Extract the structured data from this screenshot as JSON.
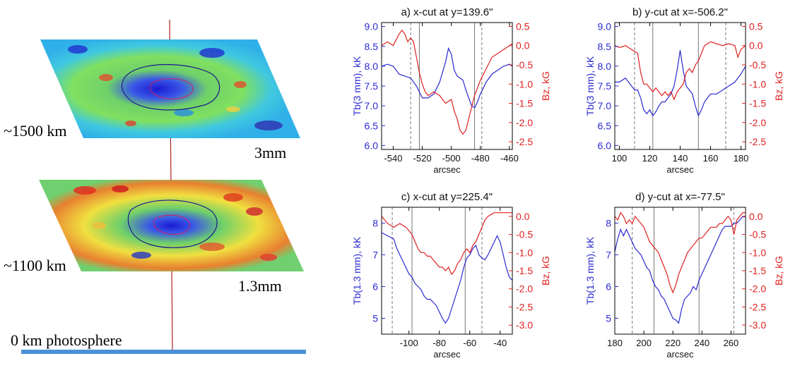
{
  "left": {
    "layer_top": {
      "height_label": "~1500 km",
      "wavelength": "3mm"
    },
    "layer_mid": {
      "height_label": "~1100 km",
      "wavelength": "1.3mm"
    },
    "base_label": "0 km photosphere",
    "colors": {
      "axis_line": "#b02020",
      "base_bar": "#4a90d9",
      "contour": "#1a1a8c",
      "contour_inner": "#d02060"
    }
  },
  "chart_data": [
    {
      "type": "line",
      "title": "a) x-cut at y=139.6\"",
      "xlabel": "arcsec",
      "ylabel_left": "Tb(3 mm), kK",
      "ylabel_right": "Bz, kG",
      "xlim": [
        -548,
        -458
      ],
      "ylim_left": [
        5.9,
        9.1
      ],
      "ylim_right": [
        -2.7,
        0.6
      ],
      "xticks": [
        -540,
        -520,
        -500,
        -480,
        -460
      ],
      "xtick_labels": [
        "-540",
        "-520",
        "-500",
        "-480",
        "-460"
      ],
      "yticks_left": [
        6.0,
        6.5,
        7.0,
        7.5,
        8.0,
        8.5,
        9.0
      ],
      "yticks_left_labels": [
        "6.0",
        "6.5",
        "7.0",
        "7.5",
        "8.0",
        "8.5",
        "9.0"
      ],
      "yticks_right": [
        0.5,
        0.0,
        -0.5,
        -1.0,
        -1.5,
        -2.0,
        -2.5
      ],
      "yticks_right_labels": [
        "0.5",
        "0.0",
        "-0.5",
        "-1.0",
        "-1.5",
        "-2.0",
        "-2.5"
      ],
      "vlines_solid": [
        -522,
        -484
      ],
      "vlines_dashed": [
        -528,
        -479
      ],
      "series": [
        {
          "axis": "left",
          "color": "#2a2ad0",
          "x": [
            -548,
            -544,
            -540,
            -536,
            -532,
            -528,
            -524,
            -520,
            -516,
            -512,
            -508,
            -504,
            -502,
            -500,
            -498,
            -496,
            -494,
            -492,
            -490,
            -488,
            -486,
            -484,
            -482,
            -480,
            -476,
            -472,
            -468,
            -464,
            -460,
            -458
          ],
          "y": [
            8.0,
            8.05,
            8.0,
            7.8,
            7.75,
            7.7,
            7.5,
            7.2,
            7.2,
            7.3,
            7.6,
            8.1,
            8.45,
            8.3,
            7.9,
            7.75,
            7.7,
            7.65,
            7.4,
            7.2,
            7.0,
            6.95,
            7.1,
            7.3,
            7.6,
            7.8,
            7.9,
            8.0,
            8.05,
            8.0
          ]
        },
        {
          "axis": "right",
          "color": "#e02020",
          "x": [
            -548,
            -544,
            -540,
            -536,
            -534,
            -532,
            -530,
            -528,
            -526,
            -524,
            -522,
            -520,
            -518,
            -516,
            -512,
            -508,
            -504,
            -500,
            -498,
            -496,
            -494,
            -492,
            -490,
            -488,
            -486,
            -484,
            -482,
            -480,
            -476,
            -472,
            -468,
            -464,
            -460,
            -458
          ],
          "y": [
            0.0,
            0.1,
            0.0,
            0.3,
            0.4,
            0.3,
            0.1,
            0.2,
            0.1,
            -0.3,
            -0.7,
            -1.0,
            -1.2,
            -1.3,
            -1.2,
            -1.3,
            -1.5,
            -1.4,
            -1.7,
            -1.9,
            -2.2,
            -2.3,
            -2.2,
            -1.9,
            -1.6,
            -1.3,
            -1.1,
            -0.9,
            -0.6,
            -0.3,
            -0.2,
            -0.1,
            0.0,
            0.05
          ]
        }
      ]
    },
    {
      "type": "line",
      "title": "b) y-cut at x=-506.2\"",
      "xlabel": "arcsec",
      "ylabel_left": "Tb(3 mm), kK",
      "ylabel_right": "Bz, kG",
      "xlim": [
        97,
        183
      ],
      "ylim_left": [
        5.9,
        9.1
      ],
      "ylim_right": [
        -2.7,
        0.6
      ],
      "xticks": [
        100,
        120,
        140,
        160,
        180
      ],
      "xtick_labels": [
        "100",
        "120",
        "140",
        "160",
        "180"
      ],
      "yticks_left": [
        6.0,
        6.5,
        7.0,
        7.5,
        8.0,
        8.5,
        9.0
      ],
      "yticks_left_labels": [
        "6.0",
        "6.5",
        "7.0",
        "7.5",
        "8.0",
        "8.5",
        "9.0"
      ],
      "yticks_right": [
        0.5,
        0.0,
        -0.5,
        -1.0,
        -1.5,
        -2.0,
        -2.5
      ],
      "yticks_right_labels": [
        "0.5",
        "0.0",
        "-0.5",
        "-1.0",
        "-1.5",
        "-2.0",
        "-2.5"
      ],
      "vlines_solid": [
        122,
        152
      ],
      "vlines_dashed": [
        110,
        170
      ],
      "series": [
        {
          "axis": "left",
          "color": "#2a2ad0",
          "x": [
            97,
            100,
            104,
            108,
            110,
            112,
            114,
            116,
            118,
            120,
            122,
            124,
            126,
            128,
            130,
            132,
            134,
            136,
            138,
            140,
            142,
            144,
            146,
            148,
            150,
            152,
            154,
            156,
            158,
            160,
            164,
            168,
            172,
            176,
            180,
            183
          ],
          "y": [
            7.6,
            7.6,
            7.7,
            7.5,
            7.4,
            7.4,
            7.2,
            6.9,
            6.8,
            6.9,
            6.75,
            6.85,
            7.0,
            7.1,
            7.1,
            7.2,
            7.3,
            7.5,
            7.9,
            8.4,
            7.9,
            7.5,
            7.4,
            7.3,
            7.0,
            6.75,
            6.9,
            7.1,
            7.2,
            7.3,
            7.3,
            7.4,
            7.5,
            7.6,
            7.8,
            8.0
          ]
        },
        {
          "axis": "right",
          "color": "#e02020",
          "x": [
            97,
            100,
            104,
            108,
            112,
            114,
            116,
            118,
            120,
            122,
            124,
            126,
            128,
            130,
            132,
            134,
            136,
            138,
            140,
            142,
            144,
            146,
            148,
            150,
            152,
            154,
            156,
            158,
            160,
            164,
            168,
            172,
            176,
            178,
            180,
            183
          ],
          "y": [
            0.0,
            -0.05,
            0.0,
            -0.1,
            -0.2,
            -0.7,
            -1.0,
            -1.0,
            -1.1,
            -1.2,
            -1.1,
            -1.2,
            -1.3,
            -1.2,
            -1.3,
            -1.2,
            -1.4,
            -1.2,
            -1.1,
            -1.0,
            -0.7,
            -0.6,
            -0.7,
            -0.5,
            -0.4,
            -0.2,
            0.0,
            0.05,
            0.1,
            0.05,
            0.0,
            0.05,
            0.0,
            -0.3,
            -0.1,
            0.0
          ]
        }
      ]
    },
    {
      "type": "line",
      "title": "c) x-cut at y=225.4\"",
      "xlabel": "arcsec",
      "ylabel_left": "Tb(1.3 mm), kK",
      "ylabel_right": "Bz, kG",
      "xlim": [
        -118,
        -32
      ],
      "ylim_left": [
        4.5,
        8.5
      ],
      "ylim_right": [
        -3.25,
        0.25
      ],
      "xticks": [
        -100,
        -80,
        -60,
        -40
      ],
      "xtick_labels": [
        "-100",
        "-80",
        "-60",
        "-40"
      ],
      "yticks_left": [
        5,
        6,
        7,
        8
      ],
      "yticks_left_labels": [
        "5",
        "6",
        "7",
        "8"
      ],
      "yticks_right": [
        0.0,
        -0.5,
        -1.0,
        -1.5,
        -2.0,
        -2.5,
        -3.0
      ],
      "yticks_right_labels": [
        "0.0",
        "-0.5",
        "-1.0",
        "-1.5",
        "-2.0",
        "-2.5",
        "-3.0"
      ],
      "vlines_solid": [
        -98,
        -63
      ],
      "vlines_dashed": [
        -111,
        -52
      ],
      "series": [
        {
          "axis": "left",
          "color": "#2a2ad0",
          "x": [
            -118,
            -114,
            -110,
            -108,
            -106,
            -104,
            -102,
            -100,
            -98,
            -96,
            -94,
            -92,
            -90,
            -88,
            -86,
            -84,
            -82,
            -80,
            -78,
            -76,
            -74,
            -72,
            -70,
            -68,
            -66,
            -64,
            -62,
            -60,
            -58,
            -56,
            -54,
            -52,
            -50,
            -48,
            -46,
            -44,
            -42,
            -40,
            -38,
            -36,
            -34,
            -32
          ],
          "y": [
            7.7,
            7.6,
            7.5,
            7.2,
            7.0,
            6.8,
            6.6,
            6.4,
            6.3,
            6.1,
            6.0,
            5.9,
            5.7,
            5.6,
            5.6,
            5.5,
            5.4,
            5.2,
            5.0,
            4.85,
            5.0,
            5.3,
            5.6,
            5.9,
            6.2,
            6.6,
            6.9,
            7.0,
            7.2,
            7.3,
            7.0,
            6.9,
            6.85,
            7.0,
            7.2,
            7.4,
            7.6,
            7.4,
            7.0,
            6.6,
            6.3,
            6.2
          ]
        },
        {
          "axis": "right",
          "color": "#e02020",
          "x": [
            -118,
            -114,
            -110,
            -106,
            -102,
            -100,
            -98,
            -96,
            -94,
            -92,
            -90,
            -88,
            -86,
            -84,
            -82,
            -80,
            -78,
            -76,
            -74,
            -72,
            -70,
            -68,
            -66,
            -64,
            -62,
            -60,
            -58,
            -56,
            -54,
            -52,
            -50,
            -48,
            -46,
            -44,
            -40,
            -36,
            -32
          ],
          "y": [
            0.0,
            -0.2,
            -0.3,
            -0.2,
            -0.3,
            -0.4,
            -0.5,
            -0.7,
            -0.9,
            -1.0,
            -1.0,
            -1.1,
            -1.1,
            -1.2,
            -1.3,
            -1.4,
            -1.4,
            -1.5,
            -1.4,
            -1.6,
            -1.5,
            -1.3,
            -1.2,
            -1.0,
            -0.9,
            -1.0,
            -0.8,
            -0.7,
            -0.5,
            -0.3,
            -0.1,
            0.0,
            0.05,
            0.1,
            0.1,
            0.1,
            0.1
          ]
        }
      ]
    },
    {
      "type": "line",
      "title": "d) y-cut at x=-77.5\"",
      "xlabel": "arcsec",
      "ylabel_left": "Tb(1.3 mm), kK",
      "ylabel_right": "Bz, kG",
      "xlim": [
        180,
        270
      ],
      "ylim_left": [
        4.5,
        8.5
      ],
      "ylim_right": [
        -3.25,
        0.25
      ],
      "xticks": [
        180,
        200,
        220,
        240,
        260
      ],
      "xtick_labels": [
        "180",
        "200",
        "220",
        "240",
        "260"
      ],
      "yticks_left": [
        5,
        6,
        7,
        8
      ],
      "yticks_left_labels": [
        "5",
        "6",
        "7",
        "8"
      ],
      "yticks_right": [
        0.0,
        -0.5,
        -1.0,
        -1.5,
        -2.0,
        -2.5,
        -3.0
      ],
      "yticks_right_labels": [
        "0.0",
        "-0.5",
        "-1.0",
        "-1.5",
        "-2.0",
        "-2.5",
        "-3.0"
      ],
      "vlines_solid": [
        207,
        238
      ],
      "vlines_dashed": [
        192,
        262
      ],
      "series": [
        {
          "axis": "left",
          "color": "#2a2ad0",
          "x": [
            180,
            182,
            184,
            186,
            188,
            190,
            192,
            194,
            196,
            198,
            200,
            202,
            204,
            206,
            208,
            210,
            212,
            214,
            216,
            218,
            220,
            222,
            224,
            226,
            228,
            230,
            232,
            234,
            236,
            238,
            240,
            242,
            244,
            246,
            248,
            250,
            252,
            254,
            256,
            258,
            260,
            262,
            264,
            266,
            268,
            270
          ],
          "y": [
            7.1,
            7.5,
            7.8,
            7.6,
            7.8,
            7.6,
            7.4,
            7.2,
            7.1,
            7.0,
            6.8,
            6.6,
            6.5,
            6.2,
            6.0,
            5.9,
            5.7,
            5.6,
            5.4,
            5.2,
            5.0,
            4.95,
            4.85,
            5.3,
            5.6,
            5.7,
            5.8,
            6.0,
            5.9,
            6.2,
            6.4,
            6.6,
            6.8,
            7.0,
            7.2,
            7.4,
            7.6,
            7.8,
            7.9,
            7.9,
            7.9,
            8.0,
            8.0,
            8.1,
            8.2,
            8.2
          ]
        },
        {
          "axis": "right",
          "color": "#e02020",
          "x": [
            180,
            182,
            184,
            186,
            188,
            190,
            192,
            194,
            196,
            198,
            200,
            202,
            204,
            206,
            208,
            210,
            212,
            214,
            216,
            218,
            220,
            222,
            224,
            226,
            228,
            230,
            232,
            234,
            236,
            238,
            240,
            242,
            244,
            246,
            248,
            250,
            252,
            254,
            256,
            258,
            260,
            262,
            264,
            266,
            268,
            270
          ],
          "y": [
            0.0,
            -0.1,
            0.1,
            0.0,
            -0.2,
            -0.1,
            -0.2,
            0.0,
            -0.1,
            -0.2,
            -0.3,
            -0.5,
            -0.7,
            -0.8,
            -0.9,
            -1.0,
            -1.2,
            -1.4,
            -1.6,
            -1.9,
            -2.1,
            -1.9,
            -1.6,
            -1.4,
            -1.2,
            -1.0,
            -0.9,
            -0.8,
            -0.7,
            -0.6,
            -0.6,
            -0.5,
            -0.4,
            -0.3,
            -0.3,
            -0.3,
            -0.2,
            -0.2,
            -0.1,
            0.0,
            -0.1,
            -0.5,
            -0.1,
            0.0,
            0.1,
            0.1
          ]
        }
      ]
    }
  ]
}
